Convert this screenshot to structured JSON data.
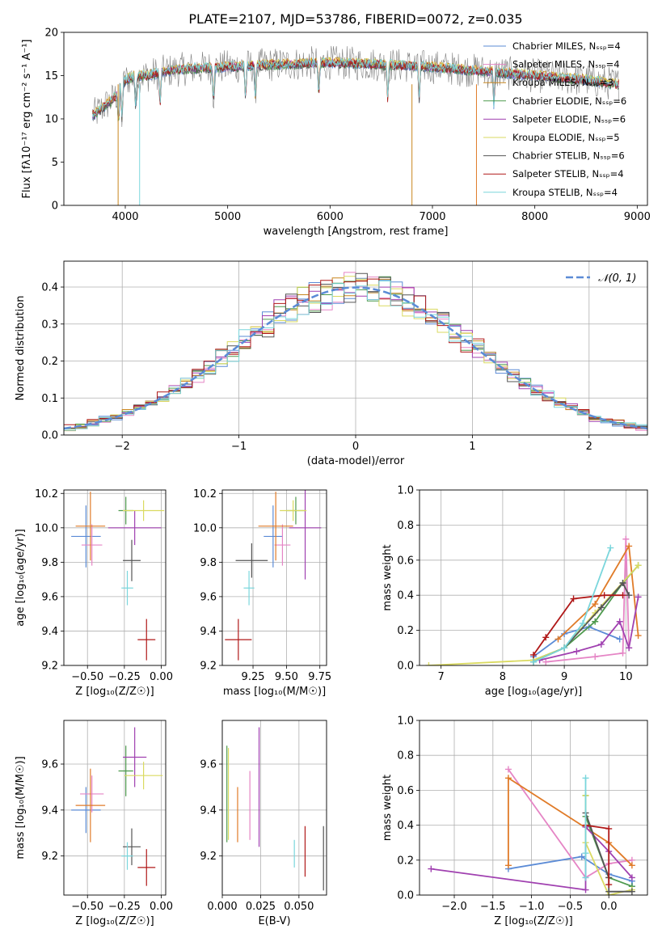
{
  "figure": {
    "title": "PLATE=2107, MJD=53786, FIBERID=0072, z=0.035"
  },
  "chart_data": [
    {
      "id": "spectrum",
      "type": "line",
      "xlabel": "wavelength [Angstrom, rest frame]",
      "ylabel": "Flux [fλ10⁻¹⁷ erg cm⁻² s⁻¹ A⁻¹]",
      "xlim": [
        3400,
        9100
      ],
      "ylim": [
        0,
        20
      ],
      "xticks": [
        4000,
        5000,
        6000,
        7000,
        8000,
        9000
      ],
      "yticks": [
        0,
        5,
        10,
        15,
        20
      ],
      "grid": false,
      "legend_position": "top-right",
      "continuum": {
        "x": [
          3700,
          3800,
          3900,
          4000,
          4100,
          4200,
          4400,
          4600,
          5000,
          5500,
          6000,
          6500,
          7000,
          7500,
          8000,
          8500,
          8800
        ],
        "y": [
          10.5,
          11.5,
          12.5,
          14.5,
          15.0,
          15.0,
          15.5,
          15.8,
          16.0,
          16.3,
          16.5,
          16.3,
          16.0,
          15.5,
          15.0,
          14.5,
          14.0
        ]
      },
      "series": [
        {
          "name": "Chabrier MILES, N_SSP=4",
          "color": "#5b8bd6"
        },
        {
          "name": "Salpeter MILES, N_SSP=4",
          "color": "#e585c5"
        },
        {
          "name": "Kroupa MILES, N_SSP=3",
          "color": "#c8861f"
        },
        {
          "name": "Chabrier ELODIE, N_SSP=6",
          "color": "#4e9a4e"
        },
        {
          "name": "Salpeter ELODIE, N_SSP=6",
          "color": "#a040b0"
        },
        {
          "name": "Kroupa ELODIE, N_SSP=5",
          "color": "#dada60"
        },
        {
          "name": "Chabrier STELIB, N_SSP=6",
          "color": "#555555"
        },
        {
          "name": "Salpeter STELIB, N_SSP=4",
          "color": "#b01818"
        },
        {
          "name": "Kroupa STELIB, N_SSP=4",
          "color": "#7ad6dc"
        }
      ]
    },
    {
      "id": "residuals",
      "type": "histogram",
      "xlabel": "(data-model)/error",
      "ylabel": "Normed distribution",
      "xlim": [
        -2.5,
        2.5
      ],
      "ylim": [
        0,
        0.47
      ],
      "xticks": [
        -2,
        -1,
        0,
        1,
        2
      ],
      "xtick_labels": [
        "−2",
        "−1",
        "0",
        "1",
        "2"
      ],
      "yticks": [
        0.0,
        0.1,
        0.2,
        0.3,
        0.4
      ],
      "ytick_labels": [
        "0.0",
        "0.1",
        "0.2",
        "0.3",
        "0.4"
      ],
      "grid": true,
      "legend": {
        "label": "𝒩(0, 1)",
        "position": "top-right",
        "color": "#5b8bd6"
      },
      "bin_width": 0.1,
      "bin_start": -2.5
    },
    {
      "id": "age_vs_Z",
      "type": "errorbar",
      "xlabel": "Z [log₁₀(Z/Z☉)]",
      "ylabel": "age  [log₁₀(age/yr)]",
      "xlim": [
        -0.66,
        0.03
      ],
      "ylim": [
        9.2,
        10.22
      ],
      "xticks": [
        -0.5,
        -0.25,
        0.0
      ],
      "xtick_labels": [
        "−0.50",
        "−0.25",
        "0.00"
      ],
      "yticks": [
        9.2,
        9.4,
        9.6,
        9.8,
        10.0,
        10.2
      ],
      "ytick_labels": [
        "9.2",
        "9.4",
        "9.6",
        "9.8",
        "10.0",
        "10.2"
      ],
      "grid": true,
      "points": [
        {
          "x": -0.51,
          "y": 9.95,
          "xerr": 0.1,
          "yerr": 0.18,
          "color": "#5b8bd6"
        },
        {
          "x": -0.47,
          "y": 9.9,
          "xerr": 0.07,
          "yerr": 0.12,
          "color": "#e585c5"
        },
        {
          "x": -0.48,
          "y": 10.01,
          "xerr": 0.1,
          "yerr": 0.2,
          "color": "#e07b28"
        },
        {
          "x": -0.24,
          "y": 10.1,
          "xerr": 0.05,
          "yerr": 0.08,
          "color": "#4e9a4e"
        },
        {
          "x": -0.18,
          "y": 10.0,
          "xerr": 0.18,
          "yerr": 0.1,
          "color": "#a040b0"
        },
        {
          "x": -0.12,
          "y": 10.1,
          "xerr": 0.14,
          "yerr": 0.06,
          "color": "#dada60"
        },
        {
          "x": -0.2,
          "y": 9.81,
          "xerr": 0.06,
          "yerr": 0.12,
          "color": "#555555"
        },
        {
          "x": -0.1,
          "y": 9.35,
          "xerr": 0.06,
          "yerr": 0.12,
          "color": "#b01818"
        },
        {
          "x": -0.23,
          "y": 9.65,
          "xerr": 0.04,
          "yerr": 0.1,
          "color": "#7ad6dc"
        }
      ]
    },
    {
      "id": "age_vs_mass",
      "type": "errorbar",
      "xlabel": "mass [log₁₀(M/M☉)]",
      "ylabel": "",
      "xlim": [
        9.02,
        9.8
      ],
      "ylim": [
        9.2,
        10.22
      ],
      "xticks": [
        9.25,
        9.5,
        9.75
      ],
      "xtick_labels": [
        "9.25",
        "9.50",
        "9.75"
      ],
      "yticks": [
        9.2,
        9.4,
        9.6,
        9.8,
        10.0,
        10.2
      ],
      "ytick_labels": [
        "9.2",
        "9.4",
        "9.6",
        "9.8",
        "10.0",
        "10.2"
      ],
      "grid": true,
      "points": [
        {
          "x": 9.4,
          "y": 9.95,
          "xerr": 0.07,
          "yerr": 0.18,
          "color": "#5b8bd6"
        },
        {
          "x": 9.47,
          "y": 9.9,
          "xerr": 0.06,
          "yerr": 0.12,
          "color": "#e585c5"
        },
        {
          "x": 9.42,
          "y": 10.01,
          "xerr": 0.13,
          "yerr": 0.2,
          "color": "#e07b28"
        },
        {
          "x": 9.57,
          "y": 10.1,
          "xerr": 0.07,
          "yerr": 0.08,
          "color": "#4e9a4e"
        },
        {
          "x": 9.64,
          "y": 10.0,
          "xerr": 0.12,
          "yerr": 0.3,
          "color": "#a040b0"
        },
        {
          "x": 9.55,
          "y": 10.1,
          "xerr": 0.1,
          "yerr": 0.06,
          "color": "#dada60"
        },
        {
          "x": 9.24,
          "y": 9.81,
          "xerr": 0.12,
          "yerr": 0.1,
          "color": "#555555"
        },
        {
          "x": 9.14,
          "y": 9.35,
          "xerr": 0.1,
          "yerr": 0.12,
          "color": "#b01818"
        },
        {
          "x": 9.22,
          "y": 9.65,
          "xerr": 0.04,
          "yerr": 0.1,
          "color": "#7ad6dc"
        }
      ]
    },
    {
      "id": "mass_weight_vs_age",
      "type": "line",
      "xlabel": "age  [log₁₀(age/yr)]",
      "ylabel": "mass weight",
      "xlim": [
        6.65,
        10.35
      ],
      "ylim": [
        0,
        1
      ],
      "xticks": [
        7,
        8,
        9,
        10
      ],
      "xtick_labels": [
        "7",
        "8",
        "9",
        "10"
      ],
      "yticks": [
        0,
        0.2,
        0.4,
        0.6,
        0.8,
        1.0
      ],
      "ytick_labels": [
        "0.0",
        "0.2",
        "0.4",
        "0.6",
        "0.8",
        "1.0"
      ],
      "grid": true,
      "series": [
        {
          "color": "#5b8bd6",
          "x": [
            8.5,
            9.0,
            9.4,
            9.9
          ],
          "y": [
            0.05,
            0.18,
            0.22,
            0.15
          ]
        },
        {
          "color": "#e585c5",
          "x": [
            8.7,
            9.5,
            9.95,
            10.0,
            10.05
          ],
          "y": [
            0.02,
            0.05,
            0.07,
            0.72,
            0.1
          ]
        },
        {
          "color": "#e07b28",
          "x": [
            8.9,
            9.5,
            10.05,
            10.2
          ],
          "y": [
            0.15,
            0.35,
            0.68,
            0.17
          ]
        },
        {
          "color": "#4e9a4e",
          "x": [
            8.5,
            9.0,
            9.5,
            9.95,
            10.2
          ],
          "y": [
            0.03,
            0.1,
            0.25,
            0.47,
            0.57
          ]
        },
        {
          "color": "#a040b0",
          "x": [
            8.6,
            9.2,
            9.6,
            9.9,
            10.05,
            10.2
          ],
          "y": [
            0.03,
            0.08,
            0.12,
            0.25,
            0.1,
            0.39
          ]
        },
        {
          "color": "#dada60",
          "x": [
            6.8,
            8.5,
            9.0,
            9.5,
            10.2
          ],
          "y": [
            0.0,
            0.03,
            0.1,
            0.3,
            0.57
          ]
        },
        {
          "color": "#555555",
          "x": [
            8.5,
            9.0,
            9.6,
            9.95,
            10.05
          ],
          "y": [
            0.02,
            0.1,
            0.33,
            0.47,
            0.4
          ]
        },
        {
          "color": "#b01818",
          "x": [
            8.5,
            8.7,
            9.15,
            9.65,
            9.95
          ],
          "y": [
            0.06,
            0.16,
            0.38,
            0.4,
            0.4
          ]
        },
        {
          "color": "#7ad6dc",
          "x": [
            8.5,
            9.0,
            9.3,
            9.75
          ],
          "y": [
            0.02,
            0.1,
            0.24,
            0.67
          ]
        }
      ]
    },
    {
      "id": "mass_vs_Z",
      "type": "errorbar",
      "xlabel": "Z [log₁₀(Z/Z☉)]",
      "ylabel": "mass [log₁₀(M/M☉)]",
      "xlim": [
        -0.66,
        0.03
      ],
      "ylim": [
        9.03,
        9.79
      ],
      "xticks": [
        -0.5,
        -0.25,
        0.0
      ],
      "xtick_labels": [
        "−0.50",
        "−0.25",
        "0.00"
      ],
      "yticks": [
        9.2,
        9.4,
        9.6
      ],
      "ytick_labels": [
        "9.2",
        "9.4",
        "9.6"
      ],
      "grid": true,
      "points": [
        {
          "x": -0.51,
          "y": 9.4,
          "xerr": 0.1,
          "yerr": 0.1,
          "color": "#5b8bd6"
        },
        {
          "x": -0.47,
          "y": 9.47,
          "xerr": 0.08,
          "yerr": 0.08,
          "color": "#e585c5"
        },
        {
          "x": -0.48,
          "y": 9.42,
          "xerr": 0.1,
          "yerr": 0.16,
          "color": "#e07b28"
        },
        {
          "x": -0.24,
          "y": 9.57,
          "xerr": 0.05,
          "yerr": 0.11,
          "color": "#4e9a4e"
        },
        {
          "x": -0.18,
          "y": 9.63,
          "xerr": 0.08,
          "yerr": 0.13,
          "color": "#a040b0"
        },
        {
          "x": -0.12,
          "y": 9.55,
          "xerr": 0.13,
          "yerr": 0.06,
          "color": "#dada60"
        },
        {
          "x": -0.2,
          "y": 9.24,
          "xerr": 0.06,
          "yerr": 0.08,
          "color": "#555555"
        },
        {
          "x": -0.1,
          "y": 9.15,
          "xerr": 0.06,
          "yerr": 0.08,
          "color": "#b01818"
        },
        {
          "x": -0.23,
          "y": 9.2,
          "xerr": 0.04,
          "yerr": 0.06,
          "color": "#7ad6dc"
        }
      ]
    },
    {
      "id": "mass_vs_EBV",
      "type": "errorbar",
      "xlabel": "E(B-V)",
      "ylabel": "",
      "xlim": [
        0.0,
        0.068
      ],
      "ylim": [
        9.03,
        9.79
      ],
      "xticks": [
        0.0,
        0.025,
        0.05
      ],
      "xtick_labels": [
        "0.000",
        "0.025",
        "0.050"
      ],
      "yticks": [
        9.2,
        9.4,
        9.6
      ],
      "ytick_labels": [
        "9.2",
        "9.4",
        "9.6"
      ],
      "grid": true,
      "points": [
        {
          "x": 0.003,
          "y": 9.47,
          "yerr": 0.21,
          "color": "#4e9a4e"
        },
        {
          "x": 0.004,
          "y": 9.47,
          "yerr": 0.2,
          "color": "#dada60"
        },
        {
          "x": 0.01,
          "y": 9.38,
          "yerr": 0.12,
          "color": "#e07b28"
        },
        {
          "x": 0.018,
          "y": 9.42,
          "yerr": 0.15,
          "color": "#e585c5"
        },
        {
          "x": 0.024,
          "y": 9.5,
          "yerr": 0.26,
          "color": "#a040b0"
        },
        {
          "x": 0.047,
          "y": 9.21,
          "yerr": 0.06,
          "color": "#7ad6dc"
        },
        {
          "x": 0.054,
          "y": 9.22,
          "yerr": 0.11,
          "color": "#b01818"
        },
        {
          "x": 0.066,
          "y": 9.19,
          "yerr": 0.14,
          "color": "#555555"
        }
      ]
    },
    {
      "id": "mass_weight_vs_Z",
      "type": "line",
      "xlabel": "Z [log₁₀(Z/Z☉)]",
      "ylabel": "mass weight",
      "xlim": [
        -2.45,
        0.5
      ],
      "ylim": [
        0,
        1
      ],
      "xticks": [
        -2.0,
        -1.5,
        -1.0,
        -0.5,
        0.0
      ],
      "xtick_labels": [
        "−2.0",
        "−1.5",
        "−1.0",
        "−0.5",
        "0.0"
      ],
      "yticks": [
        0,
        0.2,
        0.4,
        0.6,
        0.8,
        1.0
      ],
      "ytick_labels": [
        "0.0",
        "0.2",
        "0.4",
        "0.6",
        "0.8",
        "1.0"
      ],
      "grid": true,
      "series": [
        {
          "color": "#5b8bd6",
          "x": [
            -1.3,
            -0.35,
            0.0,
            0.3,
            0.3
          ],
          "y": [
            0.15,
            0.22,
            0.12,
            0.08,
            0.05
          ]
        },
        {
          "color": "#e585c5",
          "x": [
            -1.3,
            -0.3,
            0.0,
            0.3
          ],
          "y": [
            0.72,
            0.1,
            0.18,
            0.2
          ]
        },
        {
          "color": "#e07b28",
          "x": [
            -1.3,
            -1.3,
            0.0,
            0.3
          ],
          "y": [
            0.17,
            0.67,
            0.3,
            0.17
          ]
        },
        {
          "color": "#4e9a4e",
          "x": [
            -0.3,
            -0.3,
            0.0,
            0.3
          ],
          "y": [
            0.57,
            0.45,
            0.1,
            0.05
          ]
        },
        {
          "color": "#a040b0",
          "x": [
            -2.3,
            -0.3,
            -0.3,
            0.0,
            0.3
          ],
          "y": [
            0.15,
            0.03,
            0.39,
            0.25,
            0.1
          ]
        },
        {
          "color": "#dada60",
          "x": [
            -0.3,
            -0.3,
            0.0,
            0.3
          ],
          "y": [
            0.57,
            0.3,
            0.0,
            0.03
          ]
        },
        {
          "color": "#555555",
          "x": [
            -0.3,
            0.0,
            0.0,
            0.3
          ],
          "y": [
            0.47,
            0.1,
            0.02,
            0.02
          ]
        },
        {
          "color": "#b01818",
          "x": [
            -0.3,
            0.0,
            0.0
          ],
          "y": [
            0.4,
            0.38,
            0.06
          ]
        },
        {
          "color": "#7ad6dc",
          "x": [
            -0.3,
            -0.3,
            -0.3
          ],
          "y": [
            0.67,
            0.24,
            0.1
          ]
        }
      ]
    }
  ]
}
